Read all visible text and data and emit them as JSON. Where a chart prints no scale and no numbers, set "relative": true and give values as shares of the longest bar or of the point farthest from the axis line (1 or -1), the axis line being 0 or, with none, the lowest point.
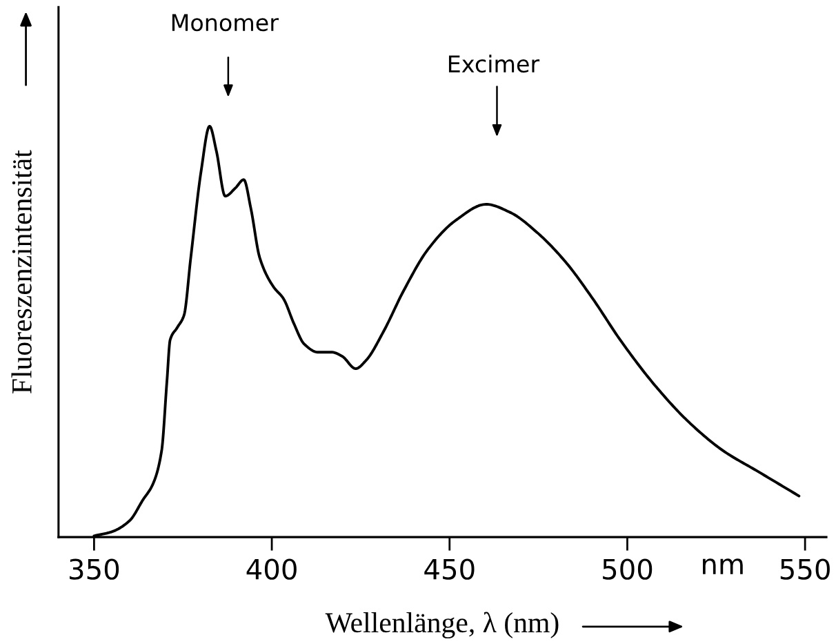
{
  "chart_data": {
    "type": "line",
    "relative": true,
    "xlabel": "Wellenlänge, λ (nm)",
    "ylabel": "Fluoreszenzintensität",
    "xlim": [
      340,
      556
    ],
    "xticks": [
      350,
      400,
      450,
      500,
      550
    ],
    "grid": false,
    "legend": false,
    "marker": "none",
    "line_style": "solid",
    "series": [
      {
        "color": "#000000",
        "x": [
          350,
          355,
          360,
          363.7,
          366.6,
          369,
          370.5,
          371.4,
          373.4,
          375.3,
          377.2,
          380.1,
          382.5,
          384.4,
          386.9,
          389.8,
          392.1,
          394.1,
          396.6,
          400.4,
          403.3,
          406.2,
          409.1,
          413,
          416.9,
          419.8,
          423.6,
          426.5,
          431.4,
          437.1,
          443.9,
          451.6,
          460.3,
          467.1,
          474.8,
          482.6,
          490.3,
          498,
          507.7,
          517.3,
          527,
          536.7,
          548.3
        ],
        "values": [
          0.003,
          0.013,
          0.04,
          0.09,
          0.13,
          0.21,
          0.38,
          0.48,
          0.51,
          0.54,
          0.68,
          0.89,
          1.0,
          0.94,
          0.83,
          0.85,
          0.87,
          0.8,
          0.68,
          0.61,
          0.58,
          0.52,
          0.47,
          0.45,
          0.45,
          0.44,
          0.41,
          0.43,
          0.5,
          0.6,
          0.7,
          0.77,
          0.81,
          0.79,
          0.74,
          0.67,
          0.58,
          0.48,
          0.37,
          0.28,
          0.21,
          0.16,
          0.1
        ]
      }
    ],
    "annotations": [
      "Monomer",
      "Excimer",
      "nm"
    ]
  }
}
